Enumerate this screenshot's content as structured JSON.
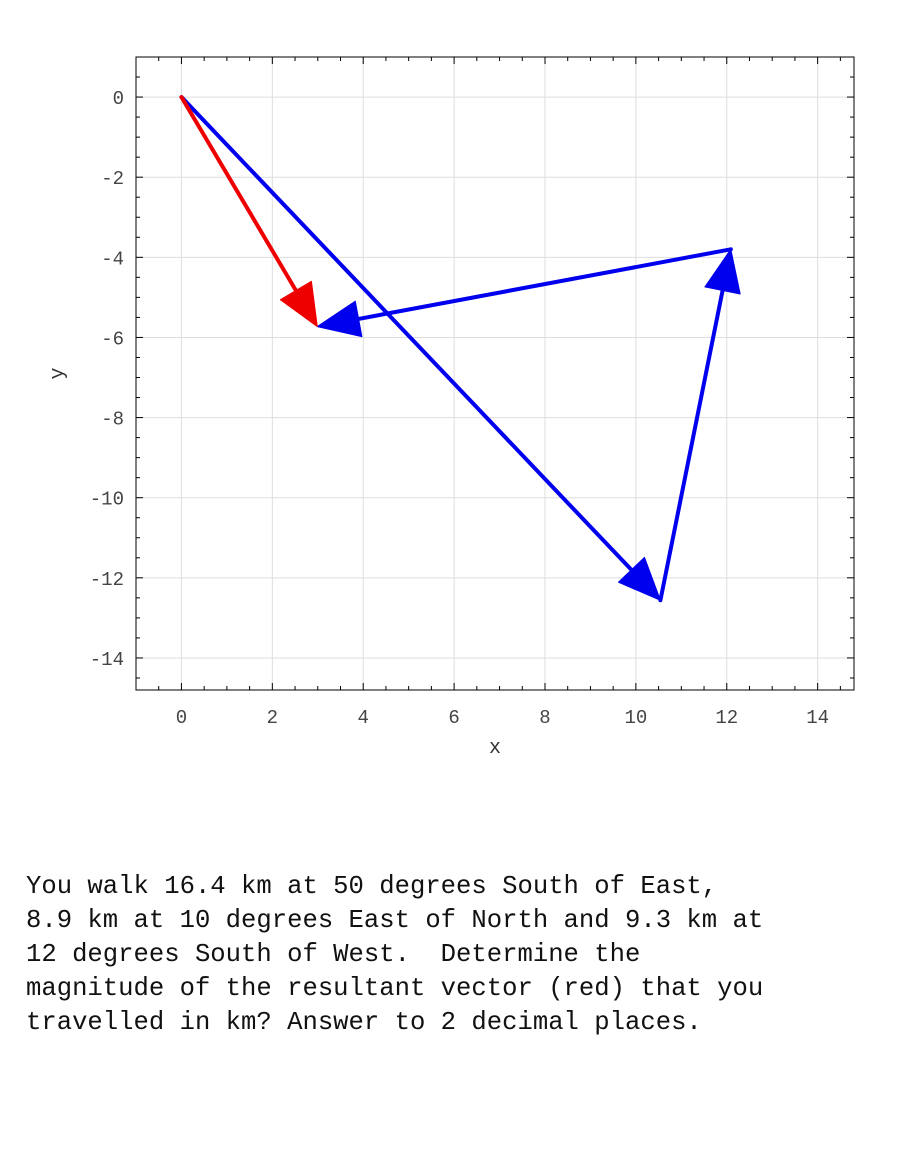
{
  "chart_data": {
    "type": "vector",
    "xlabel": "x",
    "ylabel": "y",
    "xlim": [
      -1,
      14.8
    ],
    "ylim": [
      -14.8,
      1
    ],
    "xticks": [
      0,
      2,
      4,
      6,
      8,
      10,
      12,
      14
    ],
    "yticks": [
      0,
      -2,
      -4,
      -6,
      -8,
      -10,
      -12,
      -14
    ],
    "grid": true,
    "series": [
      {
        "color": "#0000ee",
        "start": [
          0,
          0
        ],
        "end": [
          10.54,
          -12.56
        ]
      },
      {
        "color": "#0000ee",
        "start": [
          10.54,
          -12.56
        ],
        "end": [
          12.09,
          -3.8
        ]
      },
      {
        "color": "#0000ee",
        "start": [
          12.09,
          -3.8
        ],
        "end": [
          2.99,
          -5.73
        ]
      },
      {
        "color": "#ee0000",
        "start": [
          0,
          0
        ],
        "end": [
          2.99,
          -5.73
        ]
      }
    ]
  },
  "question": {
    "text": "You walk 16.4 km at 50 degrees South of East, 8.9 km at 10 degrees East of North and 9.3 km at 12 degrees South of West.  Determine the magnitude of the resultant vector (red) that you travelled in km? Answer to 2 decimal places.",
    "lines": [
      "You walk 16.4 km at 50 degrees South of East,",
      "8.9 km at 10 degrees East of North and 9.3 km at",
      "12 degrees South of West.  Determine the",
      "magnitude of the resultant vector (red) that you",
      "travelled in km? Answer to 2 decimal places."
    ]
  }
}
